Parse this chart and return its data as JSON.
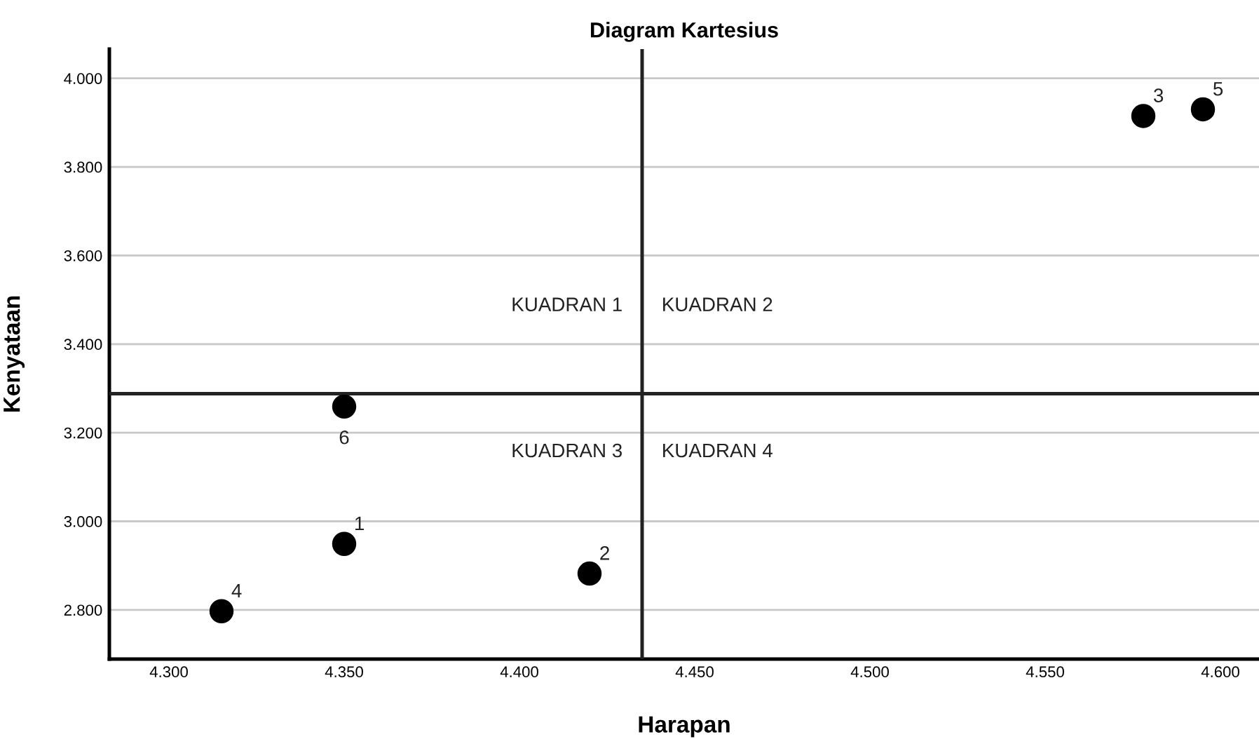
{
  "chart_data": {
    "type": "scatter",
    "title": "Diagram Kartesius",
    "xlabel": "Harapan",
    "ylabel": "Kenyataan",
    "x": [
      4.35,
      4.42,
      4.578,
      4.315,
      4.595,
      4.35
    ],
    "series": [
      {
        "color": "#000000",
        "values": [
          2.949,
          2.882,
          3.915,
          2.797,
          3.93,
          3.259
        ]
      }
    ],
    "annotations": [
      {
        "text": "1",
        "x": 4.35,
        "y": 2.949
      },
      {
        "text": "2",
        "x": 4.42,
        "y": 2.882
      },
      {
        "text": "3",
        "x": 4.578,
        "y": 3.915
      },
      {
        "text": "4",
        "x": 4.315,
        "y": 2.797
      },
      {
        "text": "5",
        "x": 4.595,
        "y": 3.93
      },
      {
        "text": "6",
        "x": 4.35,
        "y": 3.259
      },
      "KUADRAN 1",
      "KUADRAN 2",
      "KUADRAN 3",
      "KUADRAN 4"
    ],
    "ref_lines": [
      {
        "axis": "x",
        "value": 4.435,
        "color": "#222222"
      },
      {
        "axis": "y",
        "value": 3.288,
        "color": "#222222"
      }
    ],
    "xlim": [
      4.283,
      4.611
    ],
    "ylim": [
      2.689,
      4.066
    ],
    "xticks": [
      {
        "value": 4.3,
        "label": "4.300"
      },
      {
        "value": 4.35,
        "label": "4.350"
      },
      {
        "value": 4.4,
        "label": "4.400"
      },
      {
        "value": 4.45,
        "label": "4.450"
      },
      {
        "value": 4.5,
        "label": "4.500"
      },
      {
        "value": 4.55,
        "label": "4.550"
      },
      {
        "value": 4.6,
        "label": "4.600"
      }
    ],
    "yticks": [
      {
        "value": 2.8,
        "label": "2.800"
      },
      {
        "value": 3.0,
        "label": "3.000"
      },
      {
        "value": 3.2,
        "label": "3.200"
      },
      {
        "value": 3.4,
        "label": "3.400"
      },
      {
        "value": 3.6,
        "label": "3.600"
      },
      {
        "value": 3.8,
        "label": "3.800"
      },
      {
        "value": 4.0,
        "label": "4.000"
      }
    ],
    "grid": "y",
    "marker": "circle"
  }
}
